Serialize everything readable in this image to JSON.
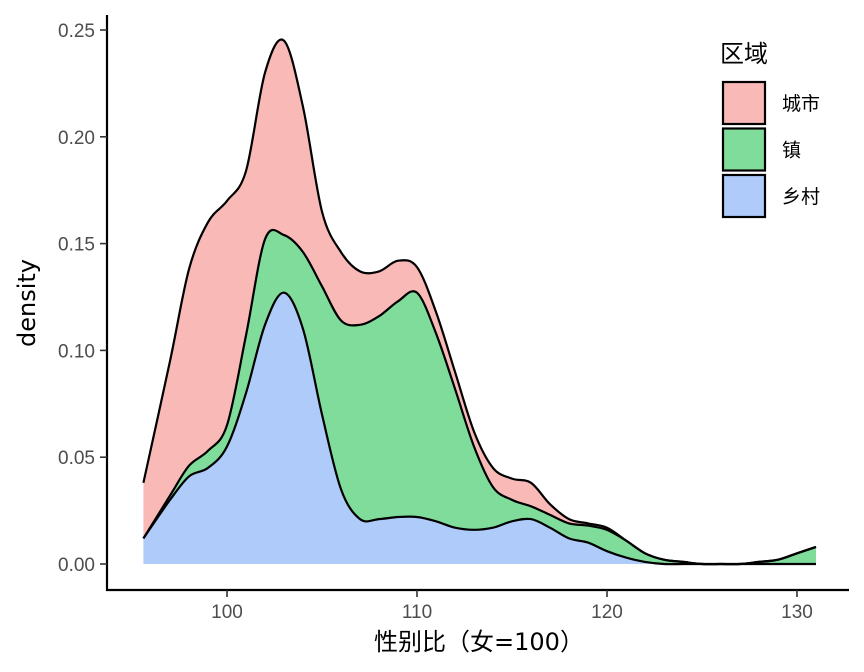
{
  "chart_data": {
    "type": "area",
    "subtype": "stacked-density",
    "title": "",
    "xlabel": "性别比（女=100）",
    "ylabel": "density",
    "xlim": [
      95.6,
      131
    ],
    "ylim": [
      0,
      0.25
    ],
    "x_ticks": [
      100,
      110,
      120,
      130
    ],
    "y_ticks": [
      "0.00",
      "0.05",
      "0.10",
      "0.15",
      "0.20",
      "0.25"
    ],
    "grid": false,
    "legend": {
      "title": "区域",
      "position": "top-right"
    },
    "x": [
      95.6,
      97,
      98,
      99,
      100,
      101,
      102,
      103,
      104,
      105,
      106,
      107,
      108,
      109,
      110,
      111,
      112,
      113,
      114,
      115,
      116,
      117,
      118,
      119,
      120,
      121,
      122,
      123,
      124,
      125,
      126,
      127,
      128,
      129,
      130,
      131
    ],
    "series": [
      {
        "name": "乡村",
        "color": "#aecbfa",
        "values": [
          0.012,
          0.03,
          0.041,
          0.045,
          0.055,
          0.08,
          0.112,
          0.127,
          0.11,
          0.07,
          0.035,
          0.021,
          0.021,
          0.022,
          0.022,
          0.02,
          0.017,
          0.016,
          0.017,
          0.02,
          0.021,
          0.017,
          0.012,
          0.01,
          0.006,
          0.003,
          0.001,
          0.0,
          0.0,
          0.0,
          0.0,
          0.0,
          0.0,
          0.0,
          0.0,
          0.0
        ]
      },
      {
        "name": "镇",
        "color": "#80dc9b",
        "values": [
          0.0,
          0.002,
          0.005,
          0.008,
          0.01,
          0.027,
          0.04,
          0.027,
          0.036,
          0.06,
          0.079,
          0.091,
          0.095,
          0.101,
          0.105,
          0.088,
          0.065,
          0.039,
          0.019,
          0.01,
          0.006,
          0.006,
          0.007,
          0.008,
          0.01,
          0.008,
          0.004,
          0.002,
          0.001,
          0.0,
          0.0,
          0.0,
          0.001,
          0.002,
          0.005,
          0.008
        ]
      },
      {
        "name": "城市",
        "color": "#f9b9b7",
        "values": [
          0.026,
          0.063,
          0.092,
          0.107,
          0.105,
          0.077,
          0.078,
          0.091,
          0.068,
          0.035,
          0.032,
          0.025,
          0.021,
          0.019,
          0.012,
          0.01,
          0.008,
          0.007,
          0.009,
          0.01,
          0.011,
          0.005,
          0.002,
          0.001,
          0.001,
          0.0,
          0.0,
          0.0,
          0.0,
          0.0,
          0.0,
          0.0,
          0.0,
          0.0,
          0.0,
          0.0
        ]
      }
    ],
    "legend_order": [
      "城市",
      "镇",
      "乡村"
    ]
  }
}
